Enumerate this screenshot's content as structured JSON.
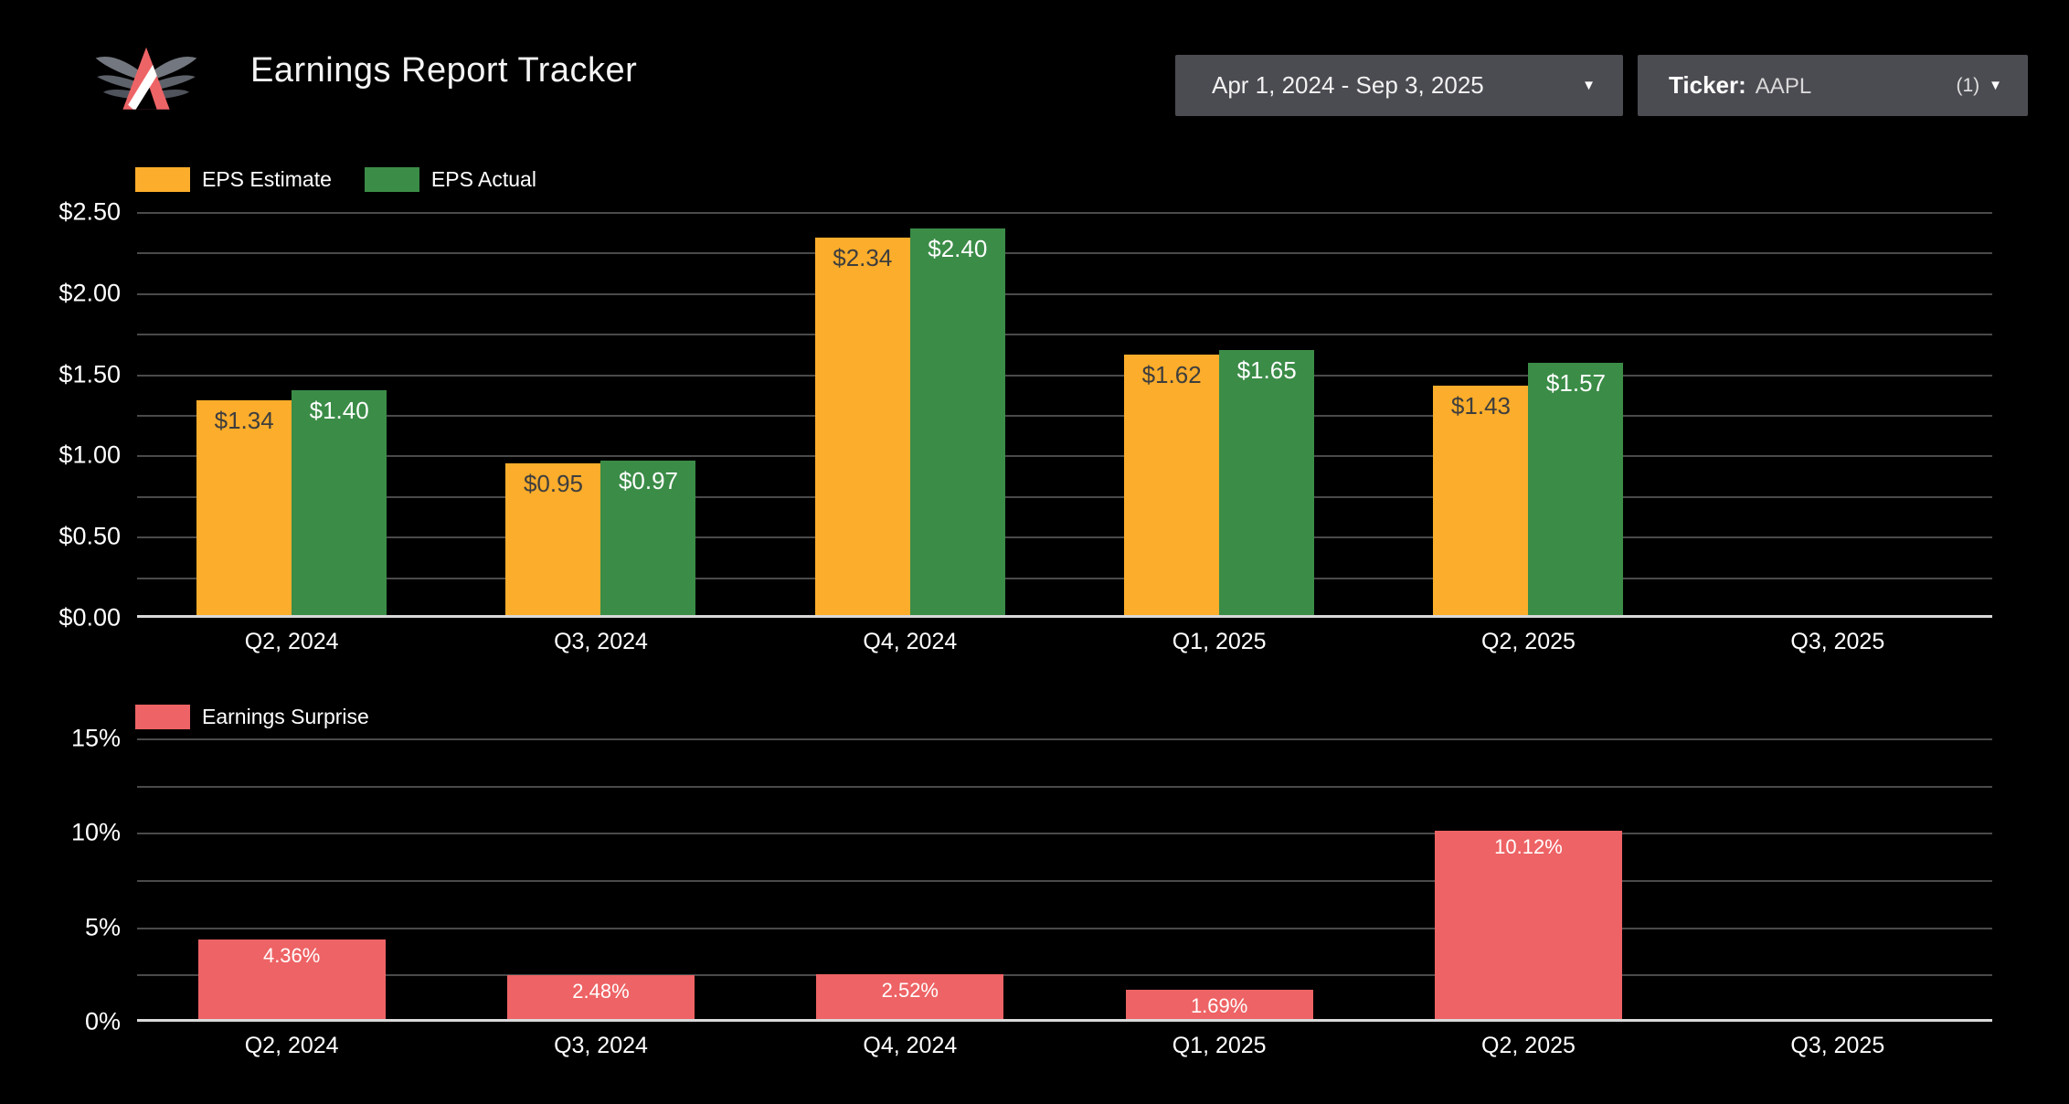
{
  "header": {
    "title": "Earnings Report Tracker",
    "date_range": {
      "value": "Apr 1, 2024 - Sep 3, 2025"
    },
    "ticker": {
      "label": "Ticker:",
      "value": "AAPL",
      "count": "(1)"
    }
  },
  "icons": {
    "chevron_down": "▼"
  },
  "colors": {
    "background": "#000000",
    "panel": "#4B4B52",
    "estimate": "#FBAD2B",
    "actual": "#3B8C47",
    "surprise": "#EE6365",
    "gridline": "#4A4A4A",
    "zero_axis": "#D9D9D9",
    "text": "#FFFFFF"
  },
  "chart_data": [
    {
      "type": "bar",
      "title": "EPS Estimate vs EPS Actual",
      "categories": [
        "Q2, 2024",
        "Q3, 2024",
        "Q4, 2024",
        "Q1, 2025",
        "Q2, 2025",
        "Q3, 2025"
      ],
      "series": [
        {
          "name": "EPS Estimate",
          "color": "#FBAD2B",
          "label_color": "#3E3E3E",
          "values": [
            1.34,
            0.95,
            2.34,
            1.62,
            1.43,
            null
          ],
          "labels": [
            "$1.34",
            "$0.95",
            "$2.34",
            "$1.62",
            "$1.43",
            ""
          ]
        },
        {
          "name": "EPS Actual",
          "color": "#3B8C47",
          "label_color": "#FFFFFF",
          "values": [
            1.4,
            0.97,
            2.4,
            1.65,
            1.57,
            null
          ],
          "labels": [
            "$1.40",
            "$0.97",
            "$2.40",
            "$1.65",
            "$1.57",
            ""
          ]
        }
      ],
      "ylim": [
        0,
        2.5
      ],
      "grid_step": 0.25,
      "yticks": [
        {
          "v": 0,
          "label": "$0.00"
        },
        {
          "v": 0.5,
          "label": "$0.50"
        },
        {
          "v": 1,
          "label": "$1.00"
        },
        {
          "v": 1.5,
          "label": "$1.50"
        },
        {
          "v": 2,
          "label": "$2.00"
        },
        {
          "v": 2.5,
          "label": "$2.50"
        }
      ],
      "grid": true,
      "legend_position": "top-left"
    },
    {
      "type": "bar",
      "title": "Earnings Surprise",
      "categories": [
        "Q2, 2024",
        "Q3, 2024",
        "Q4, 2024",
        "Q1, 2025",
        "Q2, 2025",
        "Q3, 2025"
      ],
      "series": [
        {
          "name": "Earnings Surprise",
          "color": "#EE6365",
          "label_color": "#FFFFFF",
          "values": [
            4.36,
            2.48,
            2.52,
            1.69,
            10.12,
            null
          ],
          "labels": [
            "4.36%",
            "2.48%",
            "2.52%",
            "1.69%",
            "10.12%",
            ""
          ]
        }
      ],
      "ylim": [
        0,
        15
      ],
      "grid_step": 2.5,
      "yticks": [
        {
          "v": 0,
          "label": "0%"
        },
        {
          "v": 5,
          "label": "5%"
        },
        {
          "v": 10,
          "label": "10%"
        },
        {
          "v": 15,
          "label": "15%"
        }
      ],
      "grid": true,
      "legend_position": "top-left"
    }
  ]
}
